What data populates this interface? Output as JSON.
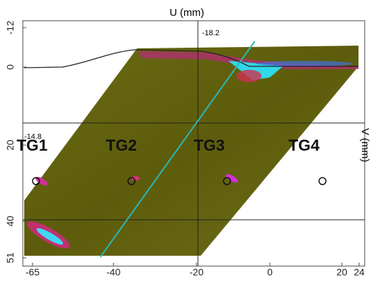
{
  "image": {
    "x_axis": {
      "label": "U (mm)",
      "ticks": [
        -65,
        -40,
        -20,
        0,
        20,
        24
      ]
    },
    "y_axis": {
      "label": "V (mm)",
      "ticks": [
        -12,
        0,
        20,
        40,
        51
      ]
    },
    "cursor_labels": [
      "-18.2",
      "-14.8"
    ],
    "targets": [
      "TG1",
      "TG2",
      "TG3",
      "TG4"
    ]
  }
}
